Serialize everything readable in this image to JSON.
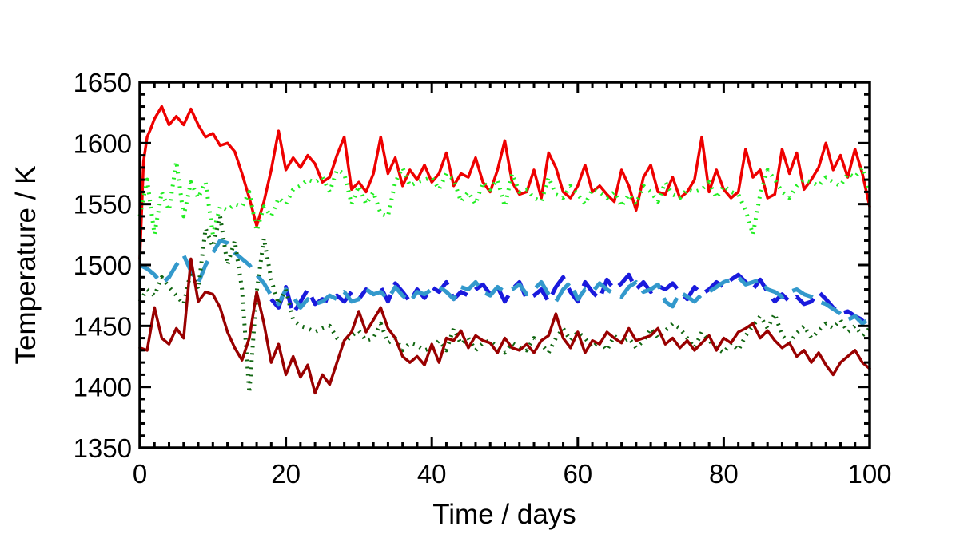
{
  "chart_data": {
    "type": "line",
    "title": "",
    "xlabel": "Time / days",
    "ylabel": "Temperature / K",
    "xlim": [
      0,
      100
    ],
    "ylim": [
      1350,
      1650
    ],
    "xticks": [
      0,
      20,
      40,
      60,
      80,
      100
    ],
    "yticks": [
      1350,
      1400,
      1450,
      1500,
      1550,
      1600,
      1650
    ],
    "grid": false,
    "legend": "none",
    "series": [
      {
        "name": "red-solid",
        "color": "#ee0000",
        "style": "solid",
        "x": [
          0,
          0.5,
          1,
          1.5,
          2,
          3,
          4,
          5,
          6,
          7,
          8,
          9,
          10,
          11,
          12,
          13,
          14,
          15,
          16,
          17,
          18,
          19,
          20,
          21,
          22,
          23,
          24,
          25,
          26,
          27,
          28,
          29,
          30,
          31,
          32,
          33,
          34,
          35,
          36,
          37,
          38,
          39,
          40,
          41,
          42,
          43,
          44,
          45,
          46,
          47,
          48,
          49,
          50,
          51,
          52,
          53,
          54,
          55,
          56,
          57,
          58,
          59,
          60,
          61,
          62,
          63,
          64,
          65,
          66,
          67,
          68,
          69,
          70,
          71,
          72,
          73,
          74,
          75,
          76,
          77,
          78,
          79,
          80,
          81,
          82,
          83,
          84,
          85,
          86,
          87,
          88,
          89,
          90,
          91,
          92,
          93,
          94,
          95,
          96,
          97,
          98,
          99,
          100
        ],
        "values": [
          1505,
          1585,
          1605,
          1612,
          1620,
          1630,
          1615,
          1622,
          1615,
          1628,
          1615,
          1605,
          1608,
          1598,
          1600,
          1593,
          1575,
          1555,
          1532,
          1552,
          1578,
          1610,
          1578,
          1588,
          1580,
          1590,
          1583,
          1568,
          1572,
          1590,
          1605,
          1562,
          1568,
          1560,
          1575,
          1605,
          1575,
          1588,
          1565,
          1578,
          1570,
          1582,
          1568,
          1575,
          1592,
          1565,
          1575,
          1572,
          1588,
          1568,
          1560,
          1578,
          1602,
          1568,
          1558,
          1560,
          1578,
          1555,
          1592,
          1580,
          1560,
          1555,
          1565,
          1582,
          1560,
          1565,
          1558,
          1552,
          1578,
          1565,
          1545,
          1572,
          1582,
          1560,
          1558,
          1572,
          1555,
          1560,
          1570,
          1605,
          1560,
          1578,
          1562,
          1555,
          1560,
          1595,
          1572,
          1578,
          1555,
          1558,
          1595,
          1575,
          1592,
          1562,
          1570,
          1580,
          1600,
          1578,
          1590,
          1572,
          1595,
          1575,
          1548
        ]
      },
      {
        "name": "green-dotted",
        "color": "#22ee22",
        "style": "dotted",
        "x": [
          0,
          1,
          2,
          3,
          4,
          5,
          6,
          7,
          8,
          9,
          10,
          11,
          12,
          13,
          14,
          15,
          16,
          17,
          18,
          19,
          20,
          21,
          22,
          23,
          24,
          25,
          26,
          27,
          28,
          29,
          30,
          31,
          32,
          33,
          34,
          35,
          36,
          37,
          38,
          39,
          40,
          41,
          42,
          43,
          44,
          45,
          46,
          47,
          48,
          49,
          50,
          51,
          52,
          53,
          54,
          55,
          56,
          57,
          58,
          59,
          60,
          61,
          62,
          63,
          64,
          65,
          66,
          67,
          68,
          69,
          70,
          71,
          72,
          73,
          74,
          75,
          76,
          77,
          78,
          79,
          80,
          81,
          82,
          83,
          84,
          85,
          86,
          87,
          88,
          89,
          90,
          91,
          92,
          93,
          94,
          95,
          96,
          97,
          98,
          99,
          100
        ],
        "values": [
          1540,
          1570,
          1525,
          1560,
          1545,
          1585,
          1540,
          1568,
          1555,
          1568,
          1525,
          1548,
          1545,
          1550,
          1548,
          1560,
          1528,
          1548,
          1540,
          1555,
          1550,
          1562,
          1565,
          1570,
          1568,
          1572,
          1560,
          1578,
          1575,
          1550,
          1565,
          1550,
          1560,
          1542,
          1540,
          1568,
          1580,
          1565,
          1568,
          1570,
          1572,
          1562,
          1575,
          1570,
          1552,
          1560,
          1550,
          1568,
          1562,
          1570,
          1548,
          1575,
          1560,
          1562,
          1555,
          1552,
          1572,
          1558,
          1555,
          1565,
          1558,
          1550,
          1562,
          1560,
          1555,
          1560,
          1548,
          1558,
          1550,
          1565,
          1560,
          1552,
          1568,
          1558,
          1555,
          1562,
          1560,
          1562,
          1568,
          1555,
          1565,
          1560,
          1558,
          1545,
          1525,
          1558,
          1578,
          1570,
          1560,
          1555,
          1565,
          1570,
          1568,
          1565,
          1572,
          1568,
          1565,
          1575,
          1572,
          1580,
          1560
        ]
      },
      {
        "name": "blue-dashed",
        "color": "#1a1add",
        "style": "dashed",
        "x": [
          18,
          19,
          20,
          21,
          22,
          23,
          24,
          25,
          26,
          27,
          28,
          29,
          30,
          31,
          32,
          33,
          34,
          35,
          36,
          37,
          38,
          39,
          40,
          41,
          42,
          43,
          44,
          45,
          46,
          47,
          48,
          49,
          50,
          51,
          52,
          53,
          54,
          55,
          56,
          57,
          58,
          59,
          60,
          61,
          62,
          63,
          64,
          65,
          66,
          67,
          68,
          69,
          70,
          71,
          72,
          73,
          74,
          75,
          76,
          77,
          78,
          79,
          80,
          81,
          82,
          83,
          84,
          85,
          86,
          87,
          88,
          89,
          90,
          91,
          92,
          93,
          94,
          95,
          96,
          97,
          98,
          99,
          100
        ],
        "values": [
          1472,
          1465,
          1482,
          1460,
          1470,
          1480,
          1468,
          1472,
          1470,
          1475,
          1470,
          1478,
          1472,
          1480,
          1476,
          1482,
          1470,
          1485,
          1478,
          1470,
          1480,
          1473,
          1482,
          1478,
          1486,
          1472,
          1478,
          1475,
          1480,
          1484,
          1476,
          1482,
          1470,
          1480,
          1486,
          1472,
          1475,
          1480,
          1470,
          1482,
          1490,
          1478,
          1470,
          1486,
          1478,
          1472,
          1488,
          1480,
          1485,
          1492,
          1480,
          1486,
          1478,
          1483,
          1480,
          1485,
          1478,
          1472,
          1482,
          1476,
          1480,
          1486,
          1482,
          1488,
          1492,
          1486,
          1480,
          1488,
          1478,
          1470,
          1476,
          1470,
          1474,
          1468,
          1470,
          1478,
          1472,
          1465,
          1460,
          1462,
          1458,
          1455,
          1462
        ]
      },
      {
        "name": "lightblue-dashed",
        "color": "#3399cc",
        "style": "dashed",
        "x": [
          0,
          1,
          2,
          3,
          4,
          5,
          6,
          7,
          8,
          9,
          10,
          11,
          12,
          13,
          14,
          15,
          16,
          17,
          18,
          19,
          20,
          21,
          22,
          23,
          24,
          25,
          26,
          27,
          28,
          29,
          30,
          31,
          32,
          33,
          34,
          35,
          36,
          37,
          38,
          39,
          40,
          41,
          42,
          43,
          44,
          45,
          46,
          47,
          48,
          49,
          50,
          51,
          52,
          53,
          54,
          55,
          56,
          57,
          58,
          59,
          60,
          61,
          62,
          63,
          64,
          65,
          66,
          67,
          68,
          69,
          70,
          71,
          72,
          73,
          74,
          75,
          76,
          77,
          78,
          79,
          80,
          81,
          82,
          83,
          84,
          85,
          86,
          87,
          88,
          89,
          90,
          91,
          92,
          93,
          94,
          95,
          96,
          97,
          98,
          99,
          100
        ],
        "values": [
          1500,
          1497,
          1492,
          1485,
          1490,
          1500,
          1508,
          1495,
          1485,
          1500,
          1510,
          1520,
          1518,
          1510,
          1505,
          1500,
          1492,
          1485,
          1475,
          1468,
          1480,
          1474,
          1465,
          1472,
          1468,
          1470,
          1475,
          1472,
          1478,
          1470,
          1472,
          1480,
          1476,
          1478,
          1472,
          1482,
          1475,
          1470,
          1478,
          1476,
          1480,
          1482,
          1478,
          1472,
          1482,
          1480,
          1486,
          1478,
          1475,
          1482,
          1478,
          1480,
          1484,
          1476,
          1480,
          1486,
          1476,
          1470,
          1480,
          1486,
          1472,
          1480,
          1478,
          1485,
          1480,
          1476,
          1474,
          1482,
          1486,
          1478,
          1480,
          1484,
          1470,
          1466,
          1478,
          1474,
          1470,
          1476,
          1478,
          1482,
          1486,
          1488,
          1490,
          1484,
          1486,
          1488,
          1480,
          1478,
          1474,
          1478,
          1480,
          1476,
          1474,
          1470,
          1468,
          1464,
          1460,
          1455,
          1458,
          1452,
          1456
        ]
      },
      {
        "name": "darkgreen-dotted",
        "color": "#116611",
        "style": "dotted",
        "x": [
          0,
          1,
          2,
          3,
          4,
          5,
          6,
          7,
          8,
          9,
          10,
          11,
          12,
          13,
          14,
          15,
          16,
          17,
          18,
          19,
          20,
          21,
          22,
          23,
          24,
          25,
          26,
          27,
          28,
          29,
          30,
          31,
          32,
          33,
          34,
          35,
          36,
          37,
          38,
          39,
          40,
          41,
          42,
          43,
          44,
          45,
          46,
          47,
          48,
          49,
          50,
          51,
          52,
          53,
          54,
          55,
          56,
          57,
          58,
          59,
          60,
          61,
          62,
          63,
          64,
          65,
          66,
          67,
          68,
          69,
          70,
          71,
          72,
          73,
          74,
          75,
          76,
          77,
          78,
          79,
          80,
          81,
          82,
          83,
          84,
          85,
          86,
          87,
          88,
          89,
          90,
          91,
          92,
          93,
          94,
          95,
          96,
          97,
          98,
          99,
          100
        ],
        "values": [
          1470,
          1480,
          1475,
          1490,
          1482,
          1475,
          1468,
          1495,
          1480,
          1530,
          1515,
          1540,
          1500,
          1520,
          1480,
          1395,
          1478,
          1522,
          1488,
          1468,
          1480,
          1455,
          1450,
          1448,
          1445,
          1448,
          1450,
          1440,
          1436,
          1442,
          1446,
          1438,
          1440,
          1452,
          1436,
          1440,
          1430,
          1436,
          1434,
          1430,
          1432,
          1438,
          1430,
          1448,
          1435,
          1440,
          1430,
          1436,
          1438,
          1432,
          1428,
          1436,
          1432,
          1430,
          1440,
          1435,
          1428,
          1440,
          1448,
          1438,
          1445,
          1440,
          1432,
          1438,
          1430,
          1442,
          1436,
          1440,
          1432,
          1438,
          1448,
          1440,
          1446,
          1452,
          1448,
          1440,
          1432,
          1445,
          1438,
          1432,
          1428,
          1436,
          1430,
          1442,
          1450,
          1458,
          1448,
          1460,
          1442,
          1436,
          1444,
          1450,
          1440,
          1446,
          1452,
          1448,
          1455,
          1445,
          1450,
          1442,
          1448
        ]
      },
      {
        "name": "darkred-solid",
        "color": "#990000",
        "style": "solid",
        "x": [
          0,
          1,
          2,
          3,
          4,
          5,
          6,
          7,
          8,
          9,
          10,
          11,
          12,
          13,
          14,
          15,
          16,
          17,
          18,
          19,
          20,
          21,
          22,
          23,
          24,
          25,
          26,
          27,
          28,
          29,
          30,
          31,
          32,
          33,
          34,
          35,
          36,
          37,
          38,
          39,
          40,
          41,
          42,
          43,
          44,
          45,
          46,
          47,
          48,
          49,
          50,
          51,
          52,
          53,
          54,
          55,
          56,
          57,
          58,
          59,
          60,
          61,
          62,
          63,
          64,
          65,
          66,
          67,
          68,
          69,
          70,
          71,
          72,
          73,
          74,
          75,
          76,
          77,
          78,
          79,
          80,
          81,
          82,
          83,
          84,
          85,
          86,
          87,
          88,
          89,
          90,
          91,
          92,
          93,
          94,
          95,
          96,
          97,
          98,
          99,
          100
        ],
        "values": [
          1432,
          1430,
          1465,
          1440,
          1435,
          1448,
          1440,
          1505,
          1470,
          1478,
          1476,
          1465,
          1445,
          1432,
          1422,
          1440,
          1478,
          1452,
          1420,
          1435,
          1410,
          1425,
          1408,
          1418,
          1395,
          1410,
          1402,
          1420,
          1438,
          1445,
          1462,
          1445,
          1455,
          1465,
          1448,
          1440,
          1425,
          1420,
          1425,
          1418,
          1435,
          1420,
          1440,
          1438,
          1446,
          1432,
          1442,
          1438,
          1436,
          1428,
          1440,
          1432,
          1430,
          1435,
          1428,
          1438,
          1442,
          1460,
          1440,
          1432,
          1445,
          1428,
          1438,
          1435,
          1445,
          1440,
          1436,
          1448,
          1438,
          1440,
          1442,
          1448,
          1435,
          1440,
          1432,
          1438,
          1430,
          1436,
          1442,
          1430,
          1440,
          1436,
          1445,
          1448,
          1452,
          1440,
          1446,
          1438,
          1432,
          1436,
          1425,
          1430,
          1420,
          1428,
          1418,
          1410,
          1420,
          1425,
          1430,
          1420,
          1415
        ]
      }
    ]
  }
}
